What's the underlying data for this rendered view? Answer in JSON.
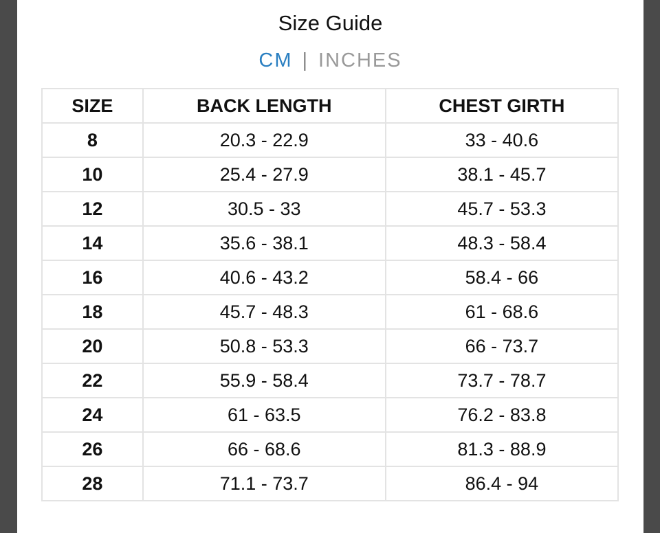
{
  "header": {
    "title": "Size Guide"
  },
  "tabs": {
    "active": "CM",
    "separator": "|",
    "other": "INCHES"
  },
  "table": {
    "columns": [
      "SIZE",
      "BACK LENGTH",
      "CHEST GIRTH"
    ],
    "rows": [
      [
        "8",
        "20.3 - 22.9",
        "33 - 40.6"
      ],
      [
        "10",
        "25.4 - 27.9",
        "38.1 - 45.7"
      ],
      [
        "12",
        "30.5 - 33",
        "45.7 - 53.3"
      ],
      [
        "14",
        "35.6 - 38.1",
        "48.3 - 58.4"
      ],
      [
        "16",
        "40.6 - 43.2",
        "58.4 - 66"
      ],
      [
        "18",
        "45.7 - 48.3",
        "61 - 68.6"
      ],
      [
        "20",
        "50.8 - 53.3",
        "66 - 73.7"
      ],
      [
        "22",
        "55.9 - 58.4",
        "73.7 - 78.7"
      ],
      [
        "24",
        "61 - 63.5",
        "76.2 - 83.8"
      ],
      [
        "26",
        "66 - 68.6",
        "81.3 - 88.9"
      ],
      [
        "28",
        "71.1 - 73.7",
        "86.4 - 94"
      ]
    ]
  }
}
